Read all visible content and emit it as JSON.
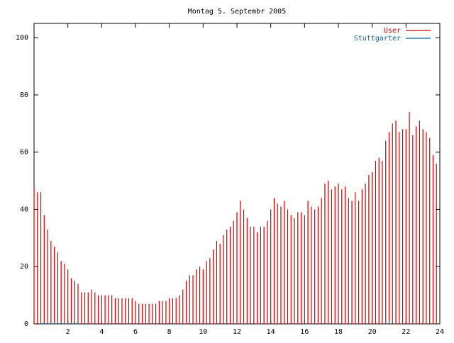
{
  "chart_data": {
    "type": "impulses",
    "title": "Montag 5. Septembr 2005",
    "x": [
      0,
      0.2,
      0.4,
      0.6,
      0.8,
      1,
      1.2,
      1.4,
      1.6,
      1.8,
      2,
      2.2,
      2.4,
      2.6,
      2.8,
      3,
      3.2,
      3.4,
      3.6,
      3.8,
      4,
      4.2,
      4.4,
      4.6,
      4.8,
      5,
      5.2,
      5.4,
      5.6,
      5.8,
      6,
      6.2,
      6.4,
      6.6,
      6.8,
      7,
      7.2,
      7.4,
      7.6,
      7.8,
      8,
      8.2,
      8.4,
      8.6,
      8.8,
      9,
      9.2,
      9.4,
      9.6,
      9.8,
      10,
      10.2,
      10.4,
      10.6,
      10.8,
      11,
      11.2,
      11.4,
      11.6,
      11.8,
      12,
      12.2,
      12.4,
      12.6,
      12.8,
      13,
      13.2,
      13.4,
      13.6,
      13.8,
      14,
      14.2,
      14.4,
      14.6,
      14.8,
      15,
      15.2,
      15.4,
      15.6,
      15.8,
      16,
      16.2,
      16.4,
      16.6,
      16.8,
      17,
      17.2,
      17.4,
      17.6,
      17.8,
      18,
      18.2,
      18.4,
      18.6,
      18.8,
      19,
      19.2,
      19.4,
      19.6,
      19.8,
      20,
      20.2,
      20.4,
      20.6,
      20.8,
      21,
      21.2,
      21.4,
      21.6,
      21.8,
      22,
      22.2,
      22.4,
      22.6,
      22.8,
      23,
      23.2,
      23.4,
      23.6,
      23.8
    ],
    "series": [
      {
        "name": "User",
        "color": "#cc0000",
        "values": [
          48,
          46,
          46,
          38,
          33,
          29,
          27,
          25,
          22,
          21,
          19,
          16,
          15,
          14,
          11,
          11,
          11,
          12,
          11,
          10,
          10,
          10,
          10,
          10,
          9,
          9,
          9,
          9,
          9,
          9,
          8,
          7,
          7,
          7,
          7,
          7,
          7,
          8,
          8,
          8,
          9,
          9,
          9,
          10,
          12,
          15,
          17,
          17,
          19,
          20,
          19,
          22,
          23,
          26,
          29,
          28,
          31,
          33,
          34,
          36,
          39,
          43,
          40,
          37,
          34,
          34,
          32,
          34,
          34,
          36,
          40,
          44,
          42,
          41,
          43,
          40,
          38,
          37,
          39,
          39,
          38,
          43,
          41,
          40,
          41,
          44,
          49,
          50,
          47,
          48,
          49,
          47,
          48,
          44,
          43,
          46,
          43,
          47,
          49,
          52,
          53,
          57,
          58,
          57,
          64,
          67,
          70,
          71,
          67,
          68,
          68,
          74,
          66,
          69,
          71,
          68,
          67,
          65,
          59,
          56
        ]
      },
      {
        "name": "Stuttgarter",
        "color": "#0066aa",
        "values": [
          0,
          0,
          0.5,
          0.5,
          0.5,
          0.5,
          0.5,
          0.5,
          0.5,
          0.5,
          0.5,
          0.5,
          0.5,
          0.5,
          0,
          0,
          0,
          0,
          0,
          0,
          0,
          0,
          0,
          0,
          0,
          0,
          0,
          0,
          0,
          0,
          0,
          0,
          0,
          0,
          0,
          0,
          0,
          0,
          0,
          0,
          0,
          0,
          0,
          0,
          0,
          0,
          0,
          0,
          0,
          0,
          0,
          0,
          0,
          0,
          0,
          0,
          0,
          0,
          0,
          0,
          0,
          0,
          0,
          0,
          0,
          0,
          0,
          0,
          0,
          0,
          0,
          0,
          0,
          0,
          0,
          0,
          0,
          0,
          0,
          0,
          0,
          0,
          0,
          0,
          0,
          0,
          0,
          0,
          0,
          0,
          0,
          0,
          0,
          0,
          0,
          0,
          0,
          0,
          0,
          0,
          0,
          0,
          0,
          0,
          0,
          1,
          0,
          0,
          0,
          0,
          0,
          0,
          0,
          0,
          0,
          0,
          0,
          0,
          0,
          0
        ]
      }
    ],
    "xlim": [
      0,
      24
    ],
    "xticks": [
      2,
      4,
      6,
      8,
      10,
      12,
      14,
      16,
      18,
      20,
      22,
      24
    ],
    "ylim": [
      0,
      105
    ],
    "yticks": [
      0,
      20,
      40,
      60,
      80,
      100
    ],
    "legend": "top-right"
  }
}
